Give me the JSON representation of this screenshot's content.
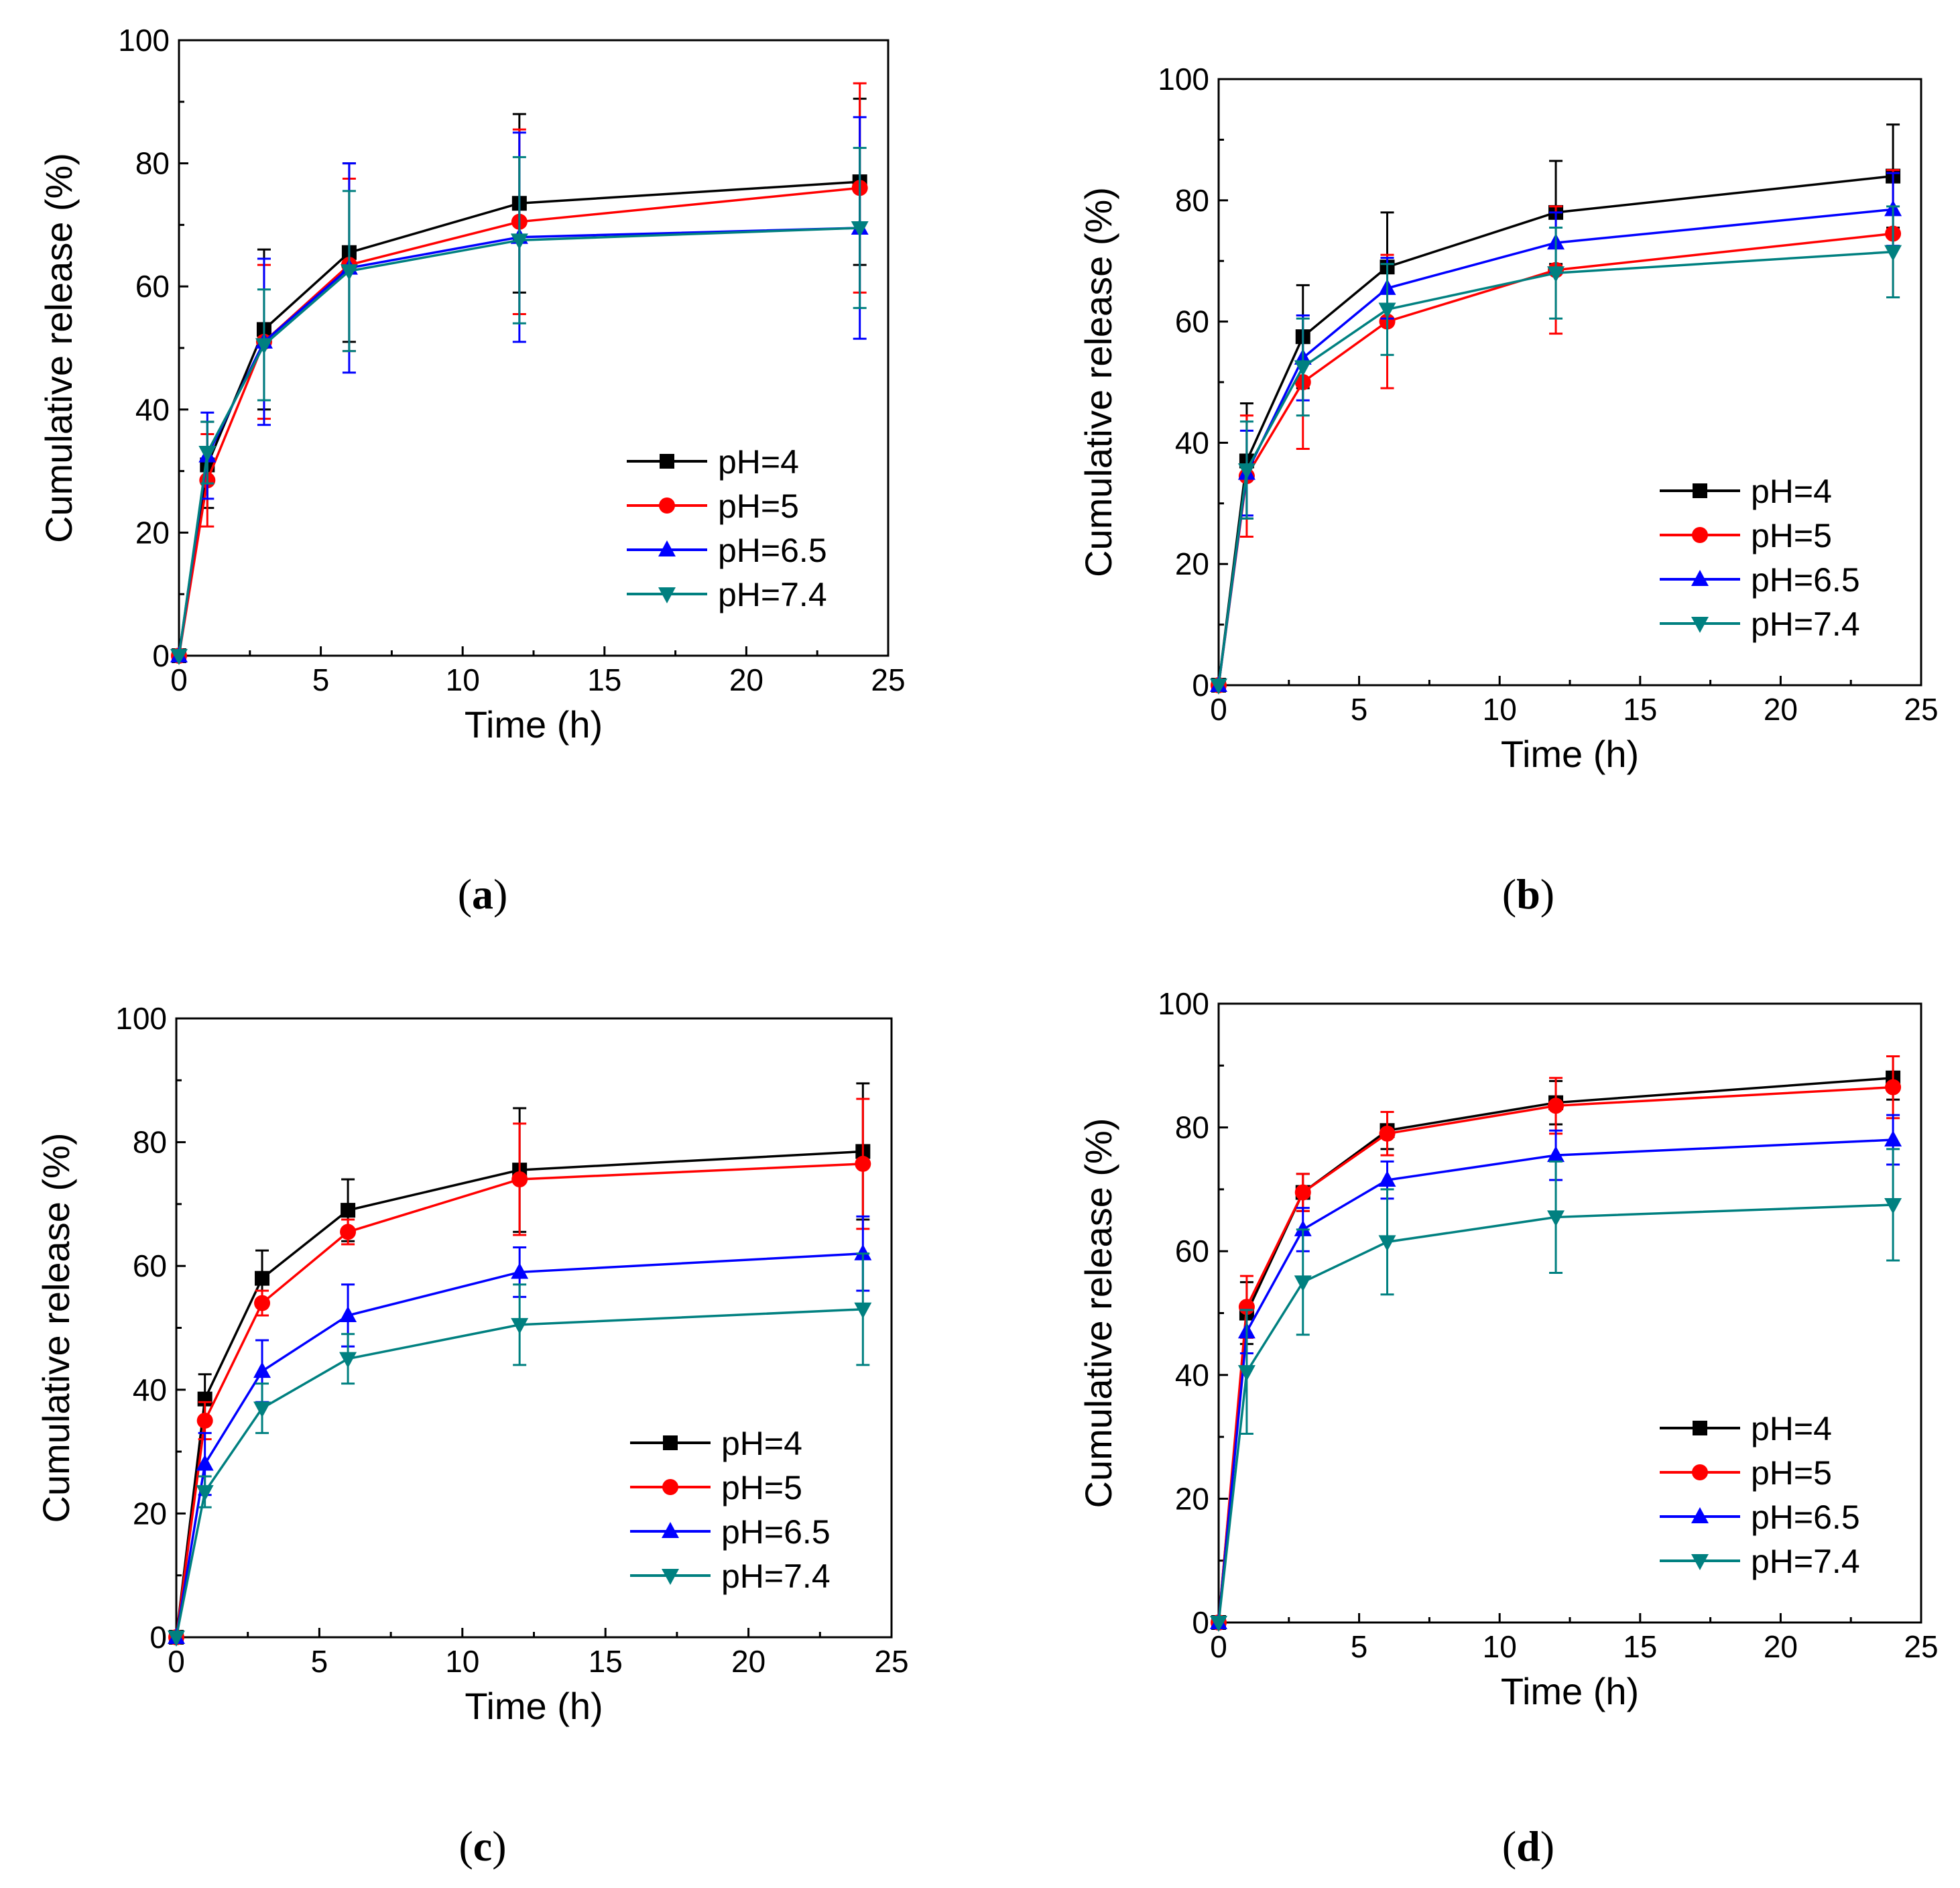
{
  "colors": {
    "pH4": "#000000",
    "pH5": "#ff0000",
    "pH6.5": "#0000ff",
    "pH7.4": "#008080"
  },
  "chart_data": [
    {
      "panel": "a",
      "caption_letter": "a",
      "type": "line",
      "xlabel": "Time (h)",
      "ylabel": "Cumulative release (%)",
      "xlim": [
        0,
        25
      ],
      "ylim": [
        0,
        100
      ],
      "xticks": [
        0,
        5,
        10,
        15,
        20,
        25
      ],
      "yticks": [
        0,
        20,
        40,
        60,
        80,
        100
      ],
      "legend_position": "bottom-right",
      "x": [
        0,
        1,
        3,
        6,
        12,
        24
      ],
      "series": [
        {
          "name": "pH=4",
          "key": "pH4",
          "marker": "square",
          "values": [
            0,
            31,
            53,
            65.5,
            73.5,
            77
          ],
          "errors": [
            0,
            7,
            13,
            14.5,
            14.5,
            13.5
          ]
        },
        {
          "name": "pH=5",
          "key": "pH5",
          "marker": "circle",
          "values": [
            0,
            28.5,
            51,
            63.5,
            70.5,
            76
          ],
          "errors": [
            0,
            7.5,
            12.5,
            14,
            15,
            17
          ]
        },
        {
          "name": "pH=6.5",
          "key": "pH6.5",
          "marker": "triangle-up",
          "values": [
            0,
            32.5,
            51,
            63,
            68,
            69.5
          ],
          "errors": [
            0,
            7,
            13.5,
            17,
            17,
            18
          ]
        },
        {
          "name": "pH=7.4",
          "key": "pH7.4",
          "marker": "triangle-down",
          "values": [
            0,
            33,
            50.5,
            62.5,
            67.5,
            69.5
          ],
          "errors": [
            0,
            5,
            9,
            13,
            13.5,
            13
          ]
        }
      ]
    },
    {
      "panel": "b",
      "caption_letter": "b",
      "type": "line",
      "xlabel": "Time (h)",
      "ylabel": "Cumulative release (%)",
      "xlim": [
        0,
        25
      ],
      "ylim": [
        0,
        100
      ],
      "xticks": [
        0,
        5,
        10,
        15,
        20,
        25
      ],
      "yticks": [
        0,
        20,
        40,
        60,
        80,
        100
      ],
      "legend_position": "bottom-right",
      "x": [
        0,
        1,
        3,
        6,
        12,
        24
      ],
      "series": [
        {
          "name": "pH=4",
          "key": "pH4",
          "marker": "square",
          "values": [
            0,
            37,
            57.5,
            69,
            78,
            84
          ],
          "errors": [
            0,
            9.5,
            8.5,
            9,
            8.5,
            8.5
          ]
        },
        {
          "name": "pH=5",
          "key": "pH5",
          "marker": "circle",
          "values": [
            0,
            34.5,
            50,
            60,
            68.5,
            74.5
          ],
          "errors": [
            0,
            10,
            11,
            11,
            10.5,
            10.5
          ]
        },
        {
          "name": "pH=6.5",
          "key": "pH6.5",
          "marker": "triangle-up",
          "values": [
            0,
            35,
            54,
            65.5,
            73,
            78.5
          ],
          "errors": [
            0,
            7,
            7,
            5,
            5,
            6
          ]
        },
        {
          "name": "pH=7.4",
          "key": "pH7.4",
          "marker": "triangle-down",
          "values": [
            0,
            35.5,
            52.5,
            62,
            68,
            71.5
          ],
          "errors": [
            0,
            8,
            8,
            7.5,
            7.5,
            7.5
          ]
        }
      ]
    },
    {
      "panel": "c",
      "caption_letter": "c",
      "type": "line",
      "xlabel": "Time (h)",
      "ylabel": "Cumulative release (%)",
      "xlim": [
        0,
        25
      ],
      "ylim": [
        0,
        100
      ],
      "xticks": [
        0,
        5,
        10,
        15,
        20,
        25
      ],
      "yticks": [
        0,
        20,
        40,
        60,
        80,
        100
      ],
      "legend_position": "bottom-right",
      "x": [
        0,
        1,
        3,
        6,
        12,
        24
      ],
      "series": [
        {
          "name": "pH=4",
          "key": "pH4",
          "marker": "square",
          "values": [
            0,
            38.5,
            58,
            69,
            75.5,
            78.5
          ],
          "errors": [
            0,
            4,
            4.5,
            5,
            10,
            11
          ]
        },
        {
          "name": "pH=5",
          "key": "pH5",
          "marker": "circle",
          "values": [
            0,
            35,
            54,
            65.5,
            74,
            76.5
          ],
          "errors": [
            0,
            3,
            2,
            2,
            9,
            10.5
          ]
        },
        {
          "name": "pH=6.5",
          "key": "pH6.5",
          "marker": "triangle-up",
          "values": [
            0,
            28,
            43,
            52,
            59,
            62
          ],
          "errors": [
            0,
            5,
            5,
            5,
            4,
            6
          ]
        },
        {
          "name": "pH=7.4",
          "key": "pH7.4",
          "marker": "triangle-down",
          "values": [
            0,
            23.5,
            37,
            45,
            50.5,
            53
          ],
          "errors": [
            0,
            2.5,
            4,
            4,
            6.5,
            9
          ]
        }
      ]
    },
    {
      "panel": "d",
      "caption_letter": "d",
      "type": "line",
      "xlabel": "Time (h)",
      "ylabel": "Cumulative release (%)",
      "xlim": [
        0,
        25
      ],
      "ylim": [
        0,
        100
      ],
      "xticks": [
        0,
        5,
        10,
        15,
        20,
        25
      ],
      "yticks": [
        0,
        20,
        40,
        60,
        80,
        100
      ],
      "legend_position": "bottom-right",
      "x": [
        0,
        1,
        3,
        6,
        12,
        24
      ],
      "series": [
        {
          "name": "pH=4",
          "key": "pH4",
          "marker": "square",
          "values": [
            0,
            50,
            69.5,
            79.5,
            84,
            88
          ],
          "errors": [
            0,
            5,
            3,
            3,
            3.5,
            3.5
          ]
        },
        {
          "name": "pH=5",
          "key": "pH5",
          "marker": "circle",
          "values": [
            0,
            51,
            69.5,
            79,
            83.5,
            86.5
          ],
          "errors": [
            0,
            5,
            3,
            3.5,
            4.5,
            5
          ]
        },
        {
          "name": "pH=6.5",
          "key": "pH6.5",
          "marker": "triangle-up",
          "values": [
            0,
            47,
            63.5,
            71.5,
            75.5,
            78
          ],
          "errors": [
            0,
            3.5,
            3.5,
            3,
            4,
            4
          ]
        },
        {
          "name": "pH=7.4",
          "key": "pH7.4",
          "marker": "triangle-down",
          "values": [
            0,
            40.5,
            55,
            61.5,
            65.5,
            67.5
          ],
          "errors": [
            0,
            10,
            8.5,
            8.5,
            9,
            9
          ]
        }
      ]
    }
  ]
}
